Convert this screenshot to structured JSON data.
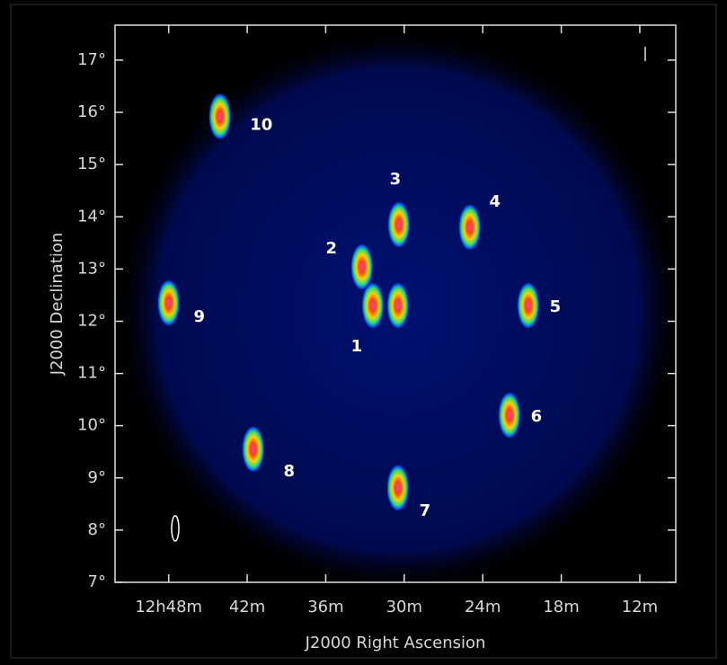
{
  "chart_data": {
    "type": "scatter",
    "xlabel": "J2000 Right Ascension",
    "ylabel": "J2000 Declination",
    "x": [
      30.48,
      33.23,
      30.41,
      24.99,
      20.52,
      21.96,
      30.48,
      41.54,
      48.0,
      44.08,
      32.4
    ],
    "values": [
      12.3,
      13.04,
      13.85,
      13.8,
      12.3,
      10.2,
      8.81,
      9.55,
      12.35,
      15.92,
      12.3
    ],
    "point_labels": [
      "1",
      "2",
      "3",
      "4",
      "5",
      "6",
      "7",
      "8",
      "9",
      "10",
      null
    ],
    "xlim": [
      52.1,
      9.25
    ],
    "xticks": [
      {
        "value": 48,
        "label": "12h48m"
      },
      {
        "value": 42,
        "label": "42m"
      },
      {
        "value": 36,
        "label": "36m"
      },
      {
        "value": 30,
        "label": "30m"
      },
      {
        "value": 24,
        "label": "24m"
      },
      {
        "value": 18,
        "label": "18m"
      },
      {
        "value": 12,
        "label": "12m"
      }
    ],
    "ylim": [
      7,
      17.67
    ],
    "yticks": [
      {
        "value": 7,
        "label": "7°"
      },
      {
        "value": 8,
        "label": "8°"
      },
      {
        "value": 9,
        "label": "9°"
      },
      {
        "value": 10,
        "label": "10°"
      },
      {
        "value": 11,
        "label": "11°"
      },
      {
        "value": 12,
        "label": "12°"
      },
      {
        "value": 13,
        "label": "13°"
      },
      {
        "value": 14,
        "label": "14°"
      },
      {
        "value": 15,
        "label": "15°"
      },
      {
        "value": 16,
        "label": "16°"
      },
      {
        "value": 17,
        "label": "17°"
      }
    ]
  }
}
